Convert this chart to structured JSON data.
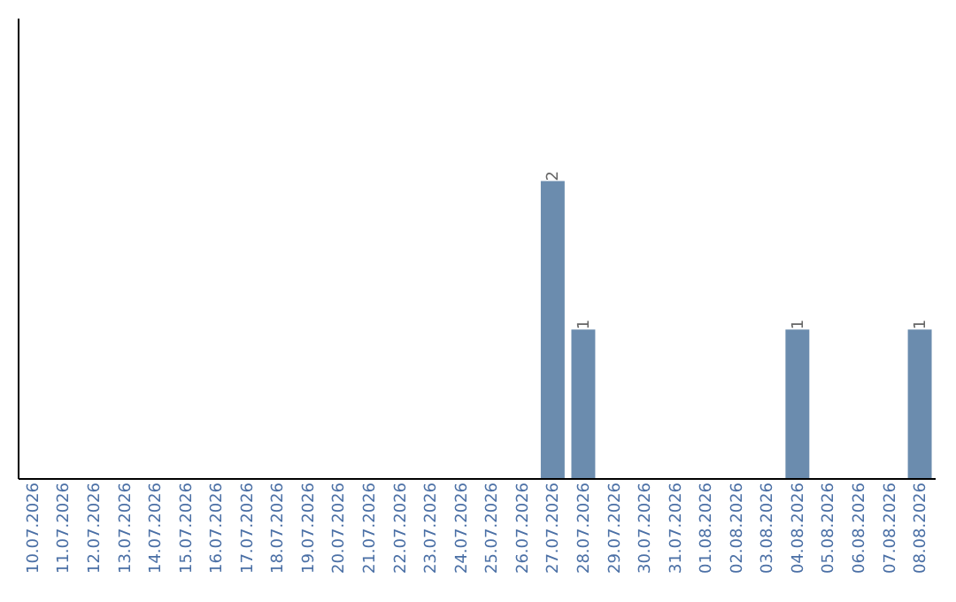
{
  "chart_data": {
    "type": "bar",
    "categories": [
      "10.07.2026",
      "11.07.2026",
      "12.07.2026",
      "13.07.2026",
      "14.07.2026",
      "15.07.2026",
      "16.07.2026",
      "17.07.2026",
      "18.07.2026",
      "19.07.2026",
      "20.07.2026",
      "21.07.2026",
      "22.07.2026",
      "23.07.2026",
      "24.07.2026",
      "25.07.2026",
      "26.07.2026",
      "27.07.2026",
      "28.07.2026",
      "29.07.2026",
      "30.07.2026",
      "31.07.2026",
      "01.08.2026",
      "02.08.2026",
      "03.08.2026",
      "04.08.2026",
      "05.08.2026",
      "06.08.2026",
      "07.08.2026",
      "08.08.2026"
    ],
    "values": [
      null,
      null,
      null,
      null,
      null,
      null,
      null,
      null,
      null,
      null,
      null,
      null,
      null,
      null,
      null,
      null,
      null,
      2,
      1,
      null,
      null,
      null,
      null,
      null,
      null,
      1,
      null,
      null,
      null,
      1
    ],
    "value_labels": [
      null,
      null,
      null,
      null,
      null,
      null,
      null,
      null,
      null,
      null,
      null,
      null,
      null,
      null,
      null,
      null,
      null,
      "2",
      "1",
      null,
      null,
      null,
      null,
      null,
      null,
      "1",
      null,
      null,
      null,
      "1"
    ],
    "color": "#6b8cae",
    "ylim": [
      0,
      3.1
    ],
    "tick_labels": "x",
    "grid": false
  }
}
